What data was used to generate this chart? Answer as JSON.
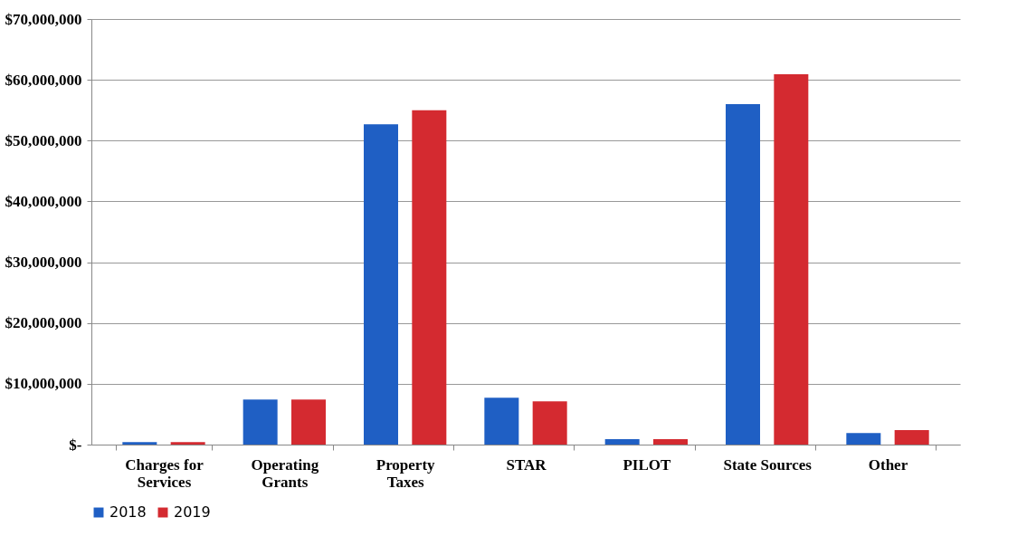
{
  "chart_data": {
    "type": "bar",
    "categories": [
      "Charges for Services",
      "Operating Grants",
      "Property Taxes",
      "STAR",
      "PILOT",
      "State Sources",
      "Other"
    ],
    "series": [
      {
        "name": "2018",
        "color": "#1f5fc4",
        "values": [
          400000,
          7400000,
          52700000,
          7700000,
          900000,
          56000000,
          1900000
        ]
      },
      {
        "name": "2019",
        "color": "#d42a30",
        "values": [
          400000,
          7400000,
          55000000,
          7100000,
          900000,
          60900000,
          2400000
        ]
      }
    ],
    "ylim": [
      0,
      70000000
    ],
    "yticks": [
      {
        "value": 0,
        "label": "$-"
      },
      {
        "value": 10000000,
        "label": "$10,000,000"
      },
      {
        "value": 20000000,
        "label": "$20,000,000"
      },
      {
        "value": 30000000,
        "label": "$30,000,000"
      },
      {
        "value": 40000000,
        "label": "$40,000,000"
      },
      {
        "value": 50000000,
        "label": "$50,000,000"
      },
      {
        "value": 60000000,
        "label": "$60,000,000"
      },
      {
        "value": 70000000,
        "label": "$70,000,000"
      }
    ],
    "grid": "y",
    "legend": "bottom"
  }
}
